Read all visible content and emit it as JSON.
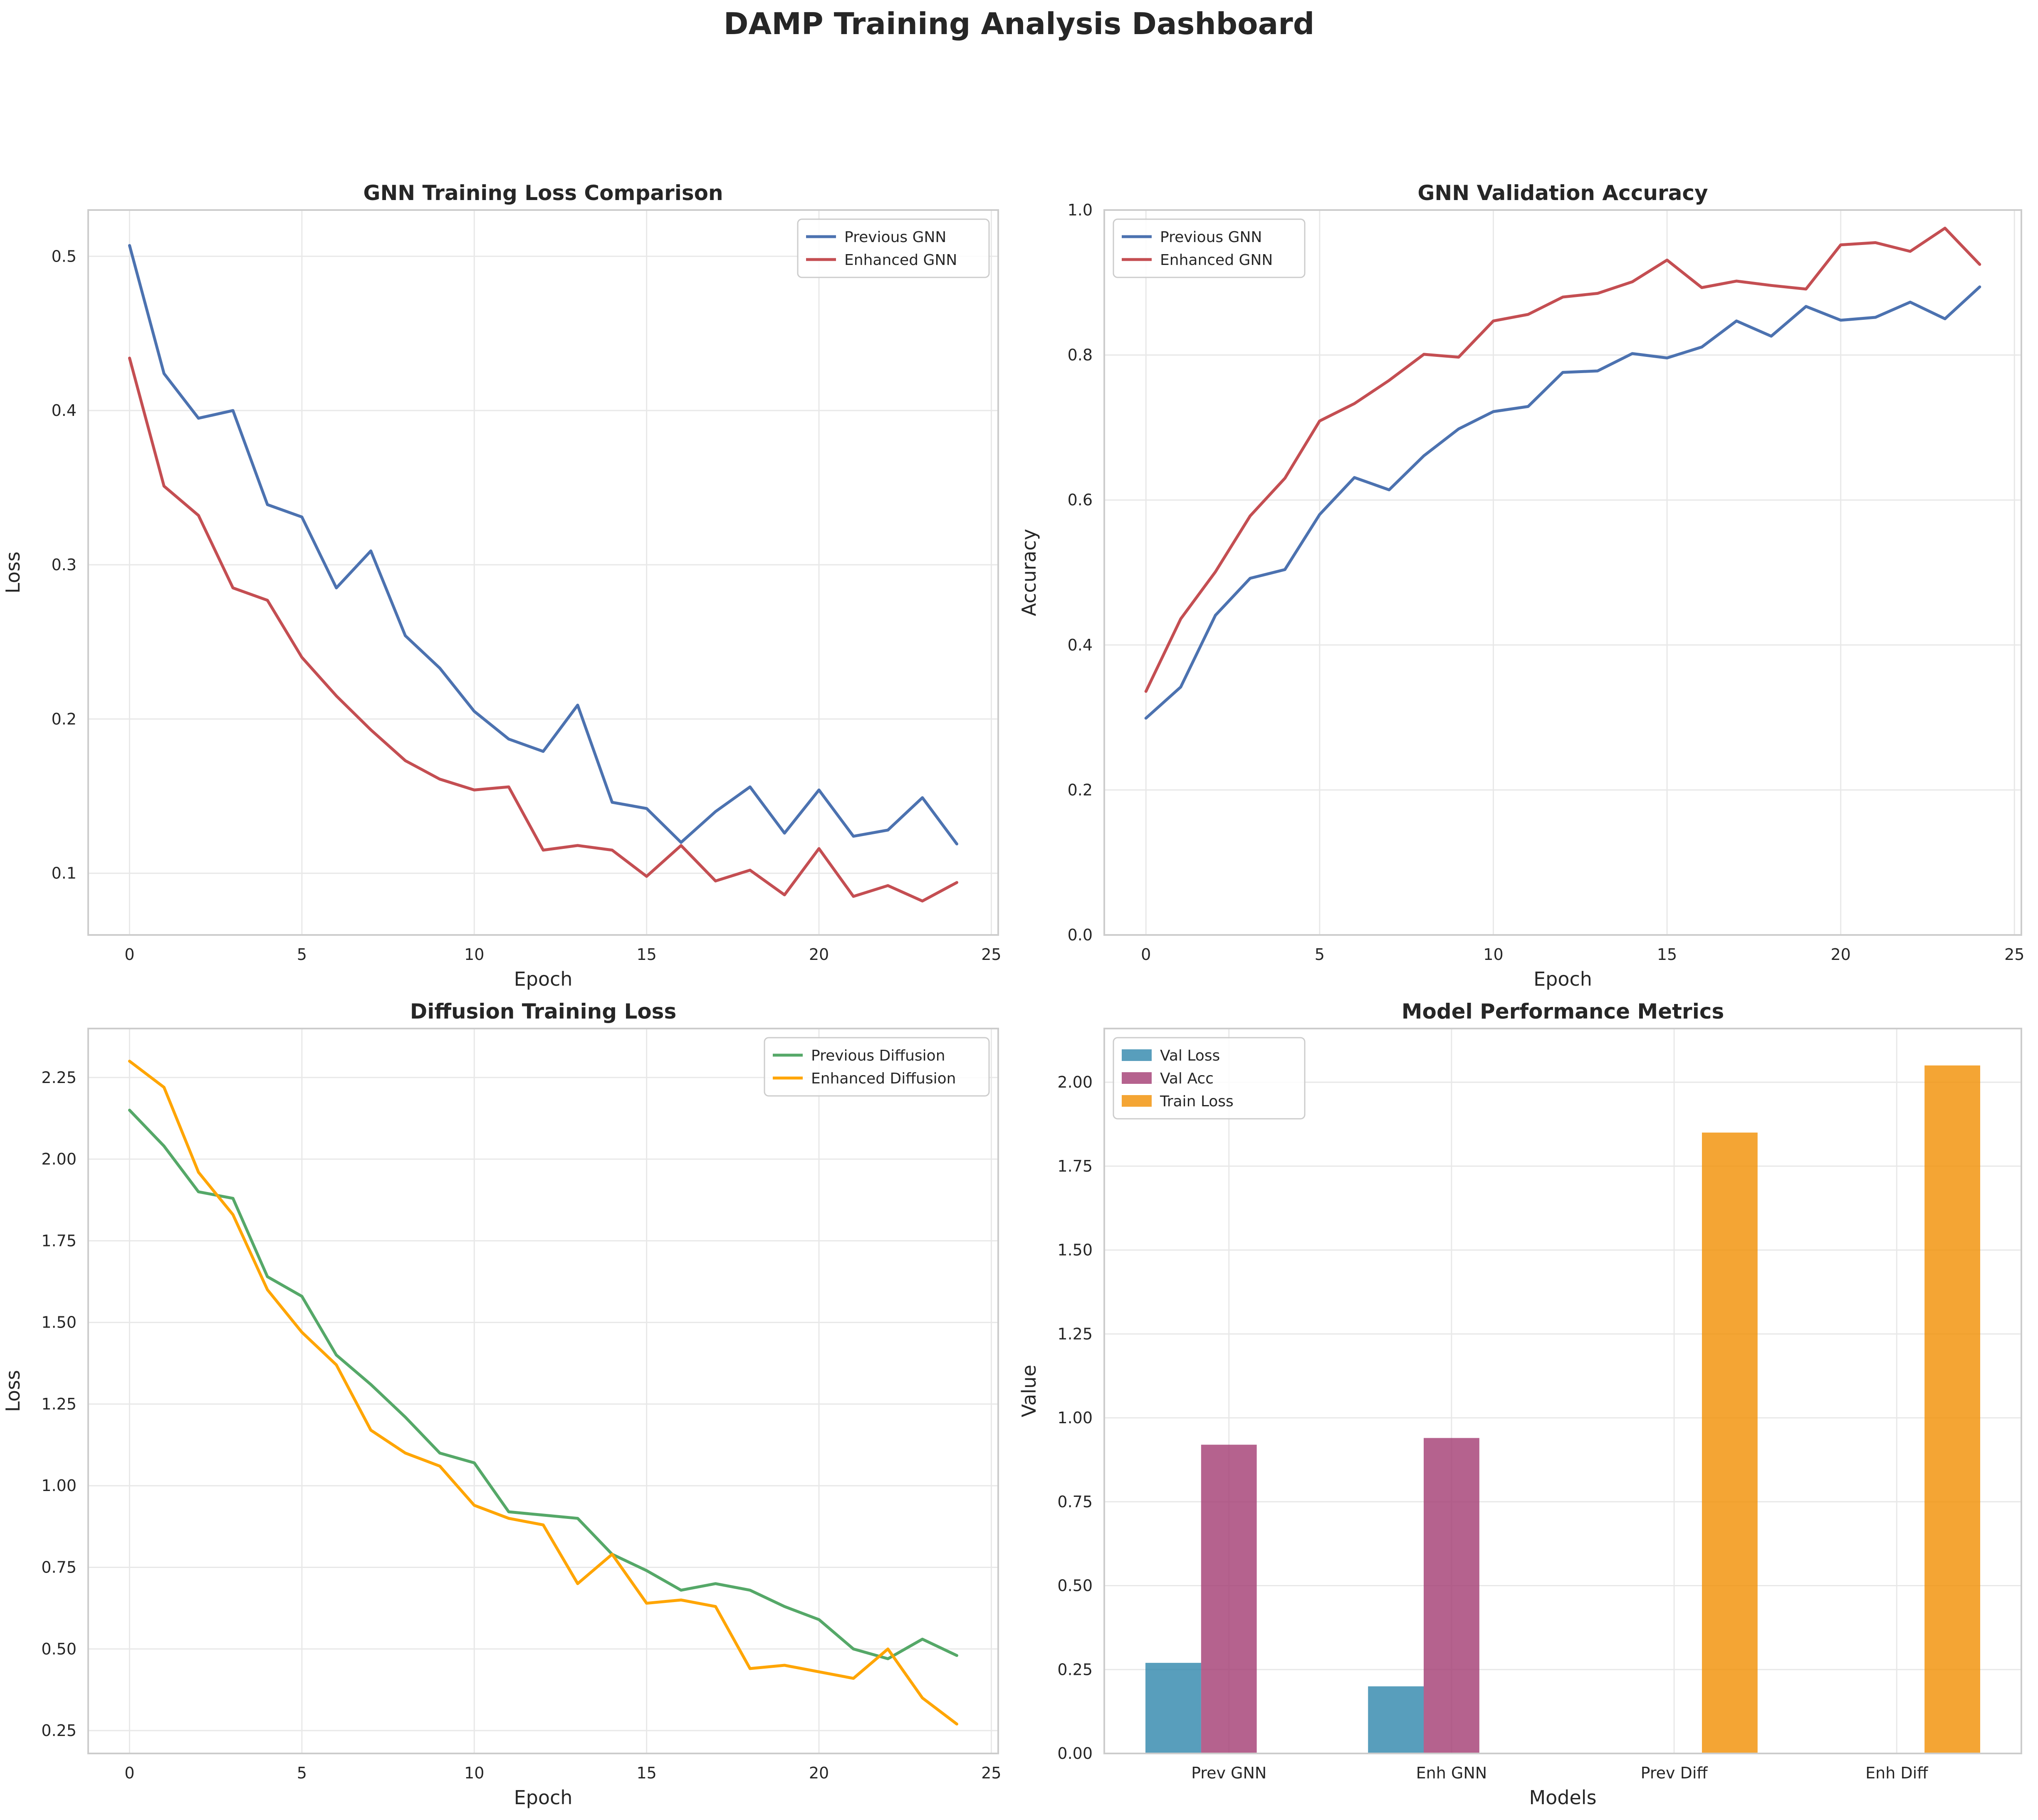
{
  "figure": {
    "title": "DAMP Training Analysis Dashboard"
  },
  "colors": {
    "prev_gnn": "#4c72b0",
    "enh_gnn": "#c44e52",
    "prev_diff": "#55a868",
    "enh_diff": "#ffa500",
    "val_loss": "#2e86ab",
    "val_acc": "#a23b72",
    "train_loss": "#f18f01"
  },
  "chart_data": [
    {
      "type": "line",
      "title": "GNN Training Loss Comparison",
      "xlabel": "Epoch",
      "ylabel": "Loss",
      "xlim": [
        -1.2,
        25.2
      ],
      "ylim": [
        0.06,
        0.53
      ],
      "xticks": [
        "0",
        "5",
        "10",
        "15",
        "20",
        "25"
      ],
      "yticks": [
        "0.1",
        "0.2",
        "0.3",
        "0.4",
        "0.5"
      ],
      "legend_position": "top-right",
      "grid": true,
      "x": [
        0,
        1,
        2,
        3,
        4,
        5,
        6,
        7,
        8,
        9,
        10,
        11,
        12,
        13,
        14,
        15,
        16,
        17,
        18,
        19,
        20,
        21,
        22,
        23,
        24
      ],
      "series": [
        {
          "name": "Previous GNN",
          "color": "#4c72b0",
          "values": [
            0.507,
            0.424,
            0.395,
            0.4,
            0.339,
            0.331,
            0.285,
            0.309,
            0.254,
            0.233,
            0.205,
            0.187,
            0.179,
            0.209,
            0.146,
            0.142,
            0.12,
            0.14,
            0.156,
            0.126,
            0.154,
            0.124,
            0.128,
            0.149,
            0.119
          ]
        },
        {
          "name": "Enhanced GNN",
          "color": "#c44e52",
          "values": [
            0.434,
            0.351,
            0.332,
            0.285,
            0.277,
            0.24,
            0.215,
            0.193,
            0.173,
            0.161,
            0.154,
            0.156,
            0.115,
            0.118,
            0.115,
            0.098,
            0.118,
            0.095,
            0.102,
            0.086,
            0.116,
            0.085,
            0.092,
            0.082,
            0.094
          ]
        }
      ]
    },
    {
      "type": "line",
      "title": "GNN Validation Accuracy",
      "xlabel": "Epoch",
      "ylabel": "Accuracy",
      "xlim": [
        -1.2,
        25.2
      ],
      "ylim": [
        0,
        1.0
      ],
      "xticks": [
        "0",
        "5",
        "10",
        "15",
        "20",
        "25"
      ],
      "yticks": [
        "0.0",
        "0.2",
        "0.4",
        "0.6",
        "0.8",
        "1.0"
      ],
      "legend_position": "top-left",
      "grid": true,
      "x": [
        0,
        1,
        2,
        3,
        4,
        5,
        6,
        7,
        8,
        9,
        10,
        11,
        12,
        13,
        14,
        15,
        16,
        17,
        18,
        19,
        20,
        21,
        22,
        23,
        24
      ],
      "series": [
        {
          "name": "Previous GNN",
          "color": "#4c72b0",
          "values": [
            0.299,
            0.342,
            0.441,
            0.492,
            0.504,
            0.58,
            0.631,
            0.614,
            0.661,
            0.698,
            0.722,
            0.729,
            0.776,
            0.778,
            0.802,
            0.796,
            0.811,
            0.847,
            0.826,
            0.867,
            0.848,
            0.852,
            0.873,
            0.85,
            0.894
          ]
        },
        {
          "name": "Enhanced GNN",
          "color": "#c44e52",
          "values": [
            0.336,
            0.436,
            0.501,
            0.578,
            0.63,
            0.709,
            0.733,
            0.765,
            0.801,
            0.797,
            0.847,
            0.856,
            0.88,
            0.885,
            0.901,
            0.931,
            0.893,
            0.902,
            0.896,
            0.891,
            0.952,
            0.955,
            0.943,
            0.975,
            0.925
          ]
        }
      ]
    },
    {
      "type": "line",
      "title": "Diffusion Training Loss",
      "xlabel": "Epoch",
      "ylabel": "Loss",
      "xlim": [
        -1.2,
        25.2
      ],
      "ylim": [
        0.18,
        2.4
      ],
      "xticks": [
        "0",
        "5",
        "10",
        "15",
        "20",
        "25"
      ],
      "yticks": [
        "0.25",
        "0.50",
        "0.75",
        "1.00",
        "1.25",
        "1.50",
        "1.75",
        "2.00",
        "2.25"
      ],
      "legend_position": "top-right",
      "grid": true,
      "x": [
        0,
        1,
        2,
        3,
        4,
        5,
        6,
        7,
        8,
        9,
        10,
        11,
        12,
        13,
        14,
        15,
        16,
        17,
        18,
        19,
        20,
        21,
        22,
        23,
        24
      ],
      "series": [
        {
          "name": "Previous Diffusion",
          "color": "#55a868",
          "values": [
            2.15,
            2.04,
            1.9,
            1.88,
            1.64,
            1.58,
            1.4,
            1.31,
            1.21,
            1.1,
            1.07,
            0.92,
            0.91,
            0.9,
            0.79,
            0.74,
            0.68,
            0.7,
            0.68,
            0.63,
            0.59,
            0.5,
            0.47,
            0.53,
            0.48
          ]
        },
        {
          "name": "Enhanced Diffusion",
          "color": "#ffa500",
          "values": [
            2.3,
            2.22,
            1.96,
            1.83,
            1.6,
            1.47,
            1.37,
            1.17,
            1.1,
            1.06,
            0.94,
            0.9,
            0.88,
            0.7,
            0.79,
            0.64,
            0.65,
            0.63,
            0.44,
            0.45,
            0.43,
            0.41,
            0.5,
            0.35,
            0.27
          ]
        }
      ]
    },
    {
      "type": "bar",
      "title": "Model Performance Metrics",
      "xlabel": "Models",
      "ylabel": "Value",
      "ylim": [
        0,
        2.16
      ],
      "yticks": [
        "0.00",
        "0.25",
        "0.50",
        "0.75",
        "1.00",
        "1.25",
        "1.50",
        "1.75",
        "2.00"
      ],
      "legend_position": "top-left",
      "grid": true,
      "categories": [
        "Prev GNN",
        "Enh GNN",
        "Prev Diff",
        "Enh Diff"
      ],
      "series": [
        {
          "name": "Val Loss",
          "color": "#2e86ab",
          "values": [
            0.27,
            0.2,
            0,
            0
          ]
        },
        {
          "name": "Val Acc",
          "color": "#a23b72",
          "values": [
            0.92,
            0.94,
            0,
            0
          ]
        },
        {
          "name": "Train Loss",
          "color": "#f18f01",
          "values": [
            0,
            0,
            1.85,
            2.05
          ]
        }
      ]
    }
  ]
}
